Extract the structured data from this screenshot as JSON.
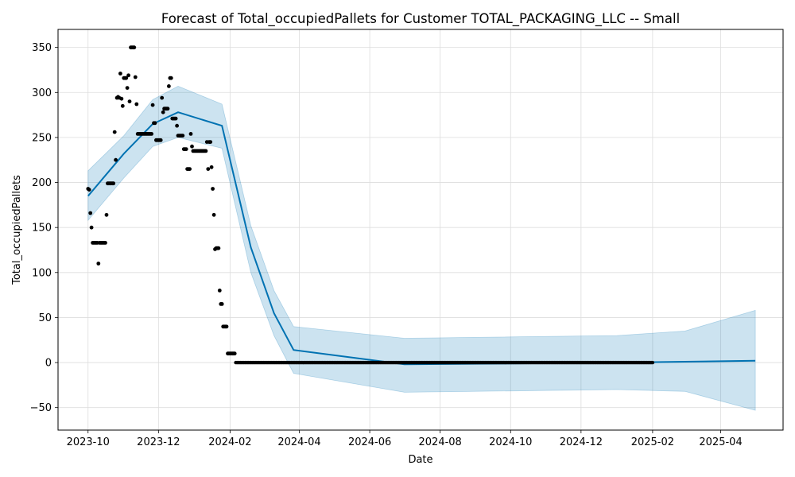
{
  "chart_data": {
    "type": "line",
    "title": "Forecast of Total_occupiedPallets for Customer TOTAL_PACKAGING_LLC -- Small",
    "xlabel": "Date",
    "ylabel": "Total_occupiedPallets",
    "xlim": [
      "2023-09-05",
      "2025-05-25"
    ],
    "ylim": [
      -75,
      370
    ],
    "grid": true,
    "x_ticks": [
      {
        "date": "2023-10-01",
        "label": "2023-10"
      },
      {
        "date": "2023-12-01",
        "label": "2023-12"
      },
      {
        "date": "2024-02-01",
        "label": "2024-02"
      },
      {
        "date": "2024-04-01",
        "label": "2024-04"
      },
      {
        "date": "2024-06-01",
        "label": "2024-06"
      },
      {
        "date": "2024-08-01",
        "label": "2024-08"
      },
      {
        "date": "2024-10-01",
        "label": "2024-10"
      },
      {
        "date": "2024-12-01",
        "label": "2024-12"
      },
      {
        "date": "2025-02-01",
        "label": "2025-02"
      },
      {
        "date": "2025-04-01",
        "label": "2025-04"
      }
    ],
    "y_ticks": [
      {
        "value": -50,
        "label": "−50"
      },
      {
        "value": 0,
        "label": "0"
      },
      {
        "value": 50,
        "label": "50"
      },
      {
        "value": 100,
        "label": "100"
      },
      {
        "value": 150,
        "label": "150"
      },
      {
        "value": 200,
        "label": "200"
      },
      {
        "value": 250,
        "label": "250"
      },
      {
        "value": 300,
        "label": "300"
      },
      {
        "value": 350,
        "label": "350"
      }
    ],
    "colors": {
      "forecast_line": "#0072B2",
      "interval_fill": "#0072B2",
      "interval_opacity": 0.2,
      "observations": "#000000",
      "grid": "#dddddd"
    },
    "series": [
      {
        "kind": "forecast",
        "x": [
          "2023-10-01",
          "2023-11-01",
          "2023-11-26",
          "2023-12-18",
          "2024-01-25",
          "2024-02-19",
          "2024-03-10",
          "2024-03-27",
          "2024-07-01",
          "2025-01-01",
          "2025-05-01"
        ],
        "y": [
          185,
          232,
          265,
          278,
          263,
          128,
          55,
          14,
          -2,
          0,
          2
        ]
      },
      {
        "kind": "interval",
        "x": [
          "2023-10-01",
          "2023-11-01",
          "2023-11-26",
          "2023-12-18",
          "2024-01-25",
          "2024-02-19",
          "2024-03-10",
          "2024-03-27",
          "2024-07-01",
          "2025-01-01",
          "2025-03-01",
          "2025-05-01"
        ],
        "upper": [
          213,
          252,
          292,
          307,
          287,
          152,
          80,
          40,
          27,
          30,
          35,
          58
        ],
        "lower": [
          158,
          205,
          240,
          250,
          238,
          100,
          30,
          -12,
          -33,
          -30,
          -32,
          -53
        ]
      },
      {
        "kind": "observed",
        "points": [
          [
            "2023-10-01",
            193
          ],
          [
            "2023-10-02",
            192
          ],
          [
            "2023-10-03",
            166
          ],
          [
            "2023-10-04",
            150
          ],
          [
            "2023-10-05",
            133
          ],
          [
            "2023-10-06",
            133
          ],
          [
            "2023-10-07",
            133
          ],
          [
            "2023-10-08",
            133
          ],
          [
            "2023-10-09",
            133
          ],
          [
            "2023-10-10",
            110
          ],
          [
            "2023-10-11",
            133
          ],
          [
            "2023-10-12",
            133
          ],
          [
            "2023-10-13",
            133
          ],
          [
            "2023-10-14",
            133
          ],
          [
            "2023-10-15",
            133
          ],
          [
            "2023-10-16",
            133
          ],
          [
            "2023-10-17",
            164
          ],
          [
            "2023-10-18",
            199
          ],
          [
            "2023-10-19",
            199
          ],
          [
            "2023-10-20",
            199
          ],
          [
            "2023-10-21",
            199
          ],
          [
            "2023-10-22",
            199
          ],
          [
            "2023-10-23",
            199
          ],
          [
            "2023-10-24",
            256
          ],
          [
            "2023-10-25",
            225
          ],
          [
            "2023-10-26",
            294
          ],
          [
            "2023-10-27",
            295
          ],
          [
            "2023-10-28",
            294
          ],
          [
            "2023-10-29",
            321
          ],
          [
            "2023-10-30",
            293
          ],
          [
            "2023-10-31",
            285
          ],
          [
            "2023-11-01",
            316
          ],
          [
            "2023-11-02",
            316
          ],
          [
            "2023-11-03",
            316
          ],
          [
            "2023-11-04",
            305
          ],
          [
            "2023-11-05",
            319
          ],
          [
            "2023-11-06",
            290
          ],
          [
            "2023-11-07",
            350
          ],
          [
            "2023-11-08",
            350
          ],
          [
            "2023-11-09",
            350
          ],
          [
            "2023-11-10",
            350
          ],
          [
            "2023-11-11",
            317
          ],
          [
            "2023-11-12",
            287
          ],
          [
            "2023-11-13",
            254
          ],
          [
            "2023-11-14",
            254
          ],
          [
            "2023-11-15",
            254
          ],
          [
            "2023-11-16",
            254
          ],
          [
            "2023-11-17",
            254
          ],
          [
            "2023-11-18",
            254
          ],
          [
            "2023-11-19",
            254
          ],
          [
            "2023-11-20",
            254
          ],
          [
            "2023-11-21",
            254
          ],
          [
            "2023-11-22",
            254
          ],
          [
            "2023-11-23",
            254
          ],
          [
            "2023-11-24",
            254
          ],
          [
            "2023-11-25",
            254
          ],
          [
            "2023-11-26",
            286
          ],
          [
            "2023-11-27",
            266
          ],
          [
            "2023-11-28",
            266
          ],
          [
            "2023-11-29",
            247
          ],
          [
            "2023-11-30",
            247
          ],
          [
            "2023-12-01",
            247
          ],
          [
            "2023-12-02",
            247
          ],
          [
            "2023-12-03",
            247
          ],
          [
            "2023-12-04",
            294
          ],
          [
            "2023-12-05",
            278
          ],
          [
            "2023-12-06",
            282
          ],
          [
            "2023-12-07",
            282
          ],
          [
            "2023-12-08",
            282
          ],
          [
            "2023-12-09",
            282
          ],
          [
            "2023-12-10",
            307
          ],
          [
            "2023-12-11",
            316
          ],
          [
            "2023-12-12",
            316
          ],
          [
            "2023-12-13",
            271
          ],
          [
            "2023-12-14",
            271
          ],
          [
            "2023-12-15",
            271
          ],
          [
            "2023-12-16",
            271
          ],
          [
            "2023-12-17",
            263
          ],
          [
            "2023-12-18",
            252
          ],
          [
            "2023-12-19",
            252
          ],
          [
            "2023-12-20",
            252
          ],
          [
            "2023-12-21",
            252
          ],
          [
            "2023-12-22",
            252
          ],
          [
            "2023-12-23",
            237
          ],
          [
            "2023-12-24",
            237
          ],
          [
            "2023-12-25",
            237
          ],
          [
            "2023-12-26",
            215
          ],
          [
            "2023-12-27",
            215
          ],
          [
            "2023-12-28",
            215
          ],
          [
            "2023-12-29",
            254
          ],
          [
            "2023-12-30",
            240
          ],
          [
            "2023-12-31",
            235
          ],
          [
            "2024-01-01",
            235
          ],
          [
            "2024-01-02",
            235
          ],
          [
            "2024-01-03",
            235
          ],
          [
            "2024-01-04",
            235
          ],
          [
            "2024-01-05",
            235
          ],
          [
            "2024-01-06",
            235
          ],
          [
            "2024-01-07",
            235
          ],
          [
            "2024-01-08",
            235
          ],
          [
            "2024-01-09",
            235
          ],
          [
            "2024-01-10",
            235
          ],
          [
            "2024-01-11",
            235
          ],
          [
            "2024-01-12",
            245
          ],
          [
            "2024-01-13",
            215
          ],
          [
            "2024-01-14",
            245
          ],
          [
            "2024-01-15",
            245
          ],
          [
            "2024-01-16",
            217
          ],
          [
            "2024-01-17",
            193
          ],
          [
            "2024-01-18",
            164
          ],
          [
            "2024-01-19",
            126
          ],
          [
            "2024-01-20",
            127
          ],
          [
            "2024-01-21",
            127
          ],
          [
            "2024-01-22",
            127
          ],
          [
            "2024-01-23",
            80
          ],
          [
            "2024-01-24",
            65
          ],
          [
            "2024-01-25",
            65
          ],
          [
            "2024-01-26",
            40
          ],
          [
            "2024-01-27",
            40
          ],
          [
            "2024-01-28",
            40
          ],
          [
            "2024-01-29",
            40
          ],
          [
            "2024-01-30",
            10
          ],
          [
            "2024-01-31",
            10
          ],
          [
            "2024-02-01",
            10
          ],
          [
            "2024-02-02",
            10
          ],
          [
            "2024-02-03",
            10
          ],
          [
            "2024-02-04",
            10
          ],
          [
            "2024-02-05",
            10
          ]
        ],
        "zero_run": {
          "start": "2024-02-06",
          "end": "2025-02-01",
          "value": 0
        }
      }
    ]
  }
}
